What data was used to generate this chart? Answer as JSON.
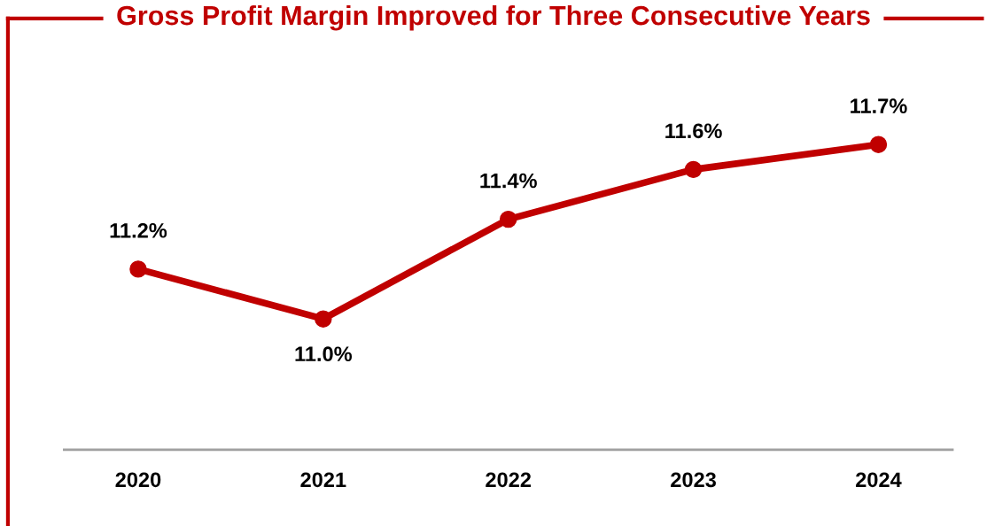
{
  "chart_data": {
    "type": "line",
    "title": "Gross Profit Margin Improved for Three Consecutive Years",
    "categories": [
      "2020",
      "2021",
      "2022",
      "2023",
      "2024"
    ],
    "series": [
      {
        "color": "#c00000",
        "values": [
          11.2,
          11.0,
          11.4,
          11.6,
          11.7
        ],
        "value_labels": [
          "11.2%",
          "11.0%",
          "11.4%",
          "11.6%",
          "11.7%"
        ]
      }
    ],
    "marker": "circle",
    "line_style": "solid",
    "grid": false,
    "legend": false,
    "tick_labels": "x"
  }
}
